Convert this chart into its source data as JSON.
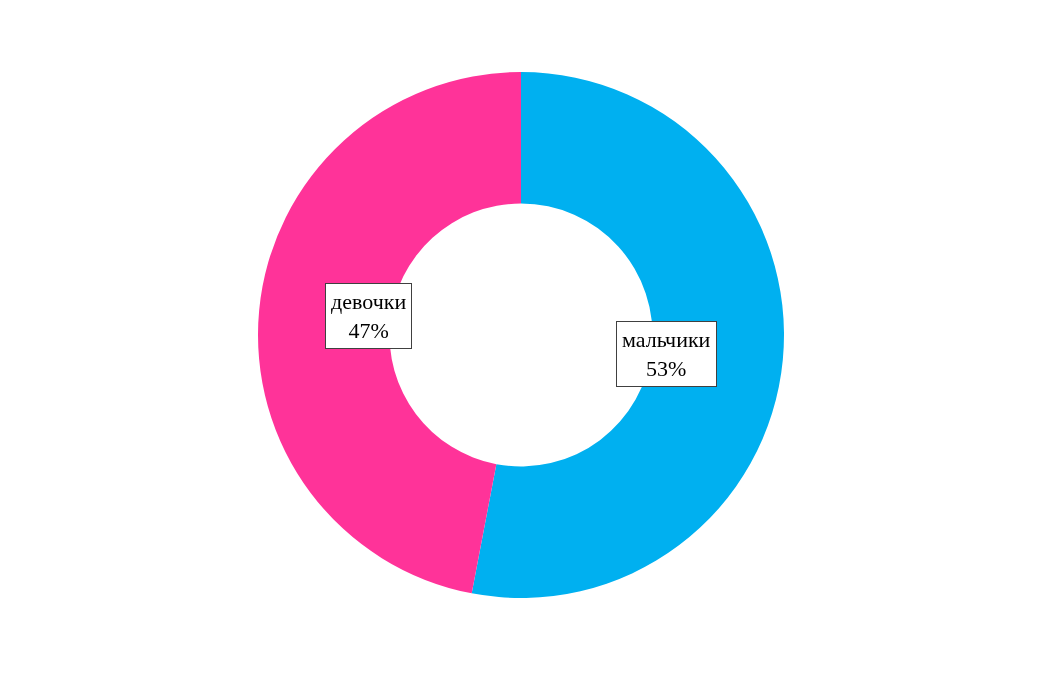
{
  "chart_data": {
    "type": "donut",
    "categories": [
      "мальчики",
      "девочки"
    ],
    "values": [
      53,
      47
    ],
    "colors": [
      "#00b0f0",
      "#ff3399"
    ],
    "value_labels": [
      "53%",
      "47%"
    ],
    "legend": false
  }
}
